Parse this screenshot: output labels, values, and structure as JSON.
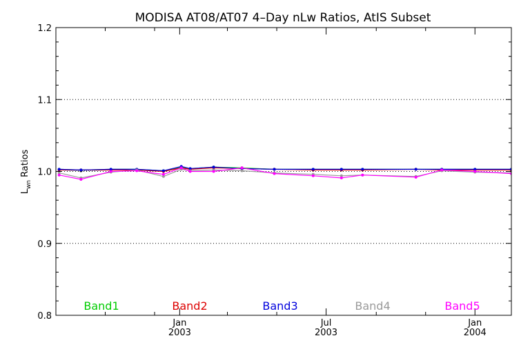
{
  "chart_data": {
    "type": "line",
    "title": "MODISA AT08/AT07 4–Day nLw Ratios, AtIS Subset",
    "ylabel_main": "L",
    "ylabel_sub": "wn",
    "ylabel_rest": " Ratios",
    "xlabel": "",
    "ylim": [
      0.8,
      1.2
    ],
    "yticks": [
      "0.8",
      "0.9",
      "1.0",
      "1.1",
      "1.2"
    ],
    "grid": "horizontal dotted at 0.9, 1.0, 1.1",
    "legend_placement": "bottom, inside plot",
    "x_range": [
      "2002-08-01",
      "2004-02-15"
    ],
    "x_ticks": [
      {
        "date": "2003-01-01",
        "line1": "Jan",
        "line2": "2003"
      },
      {
        "date": "2003-07-01",
        "line1": "Jul",
        "line2": "2003"
      },
      {
        "date": "2004-01-01",
        "line1": "Jan",
        "line2": "2004"
      }
    ],
    "x_minor_ticks": [
      "2002-10-01",
      "2002-12-01",
      "2003-03-01",
      "2003-05-01",
      "2003-09-01",
      "2003-11-01"
    ],
    "x": [
      "2002-08-05",
      "2002-09-01",
      "2002-10-08",
      "2002-11-09",
      "2002-12-12",
      "2003-01-03",
      "2003-01-14",
      "2003-02-12",
      "2003-03-19",
      "2003-04-28",
      "2003-06-15",
      "2003-07-20",
      "2003-08-15",
      "2003-10-20",
      "2003-11-21",
      "2004-01-01",
      "2004-02-15"
    ],
    "series": [
      {
        "name": "Band1",
        "color": "#00cc00",
        "values": [
          1.003,
          1.002,
          1.003,
          1.003,
          1.001,
          1.006,
          1.004,
          1.006,
          1.005,
          1.003,
          1.003,
          1.003,
          1.003,
          1.003,
          1.003,
          1.003,
          1.003
        ]
      },
      {
        "name": "Band2",
        "color": "#dd0000",
        "values": [
          1.002,
          1.002,
          1.002,
          1.002,
          1.0,
          1.005,
          1.003,
          1.005,
          1.004,
          1.003,
          1.002,
          1.002,
          1.002,
          1.003,
          1.002,
          1.002,
          1.002
        ]
      },
      {
        "name": "Band3",
        "color": "#0000dd",
        "values": [
          1.003,
          1.002,
          1.003,
          1.003,
          1.001,
          1.007,
          1.004,
          1.006,
          1.004,
          1.003,
          1.003,
          1.003,
          1.003,
          1.003,
          1.003,
          1.003,
          1.003
        ]
      },
      {
        "name": "Band4",
        "color": "#999999",
        "values": [
          0.998,
          0.991,
          0.999,
          1.002,
          0.993,
          1.003,
          1.001,
          1.002,
          1.001,
          0.998,
          0.996,
          0.994,
          0.995,
          0.993,
          1.001,
          0.999,
          0.998
        ]
      },
      {
        "name": "Band5",
        "color": "#ff00ff",
        "values": [
          0.995,
          0.989,
          1.0,
          1.001,
          0.996,
          1.005,
          1.0,
          1.0,
          1.005,
          0.997,
          0.994,
          0.991,
          0.995,
          0.992,
          1.002,
          1.0,
          0.997
        ]
      }
    ],
    "reference_series": {
      "color": "#000000",
      "values": [
        1.002,
        1.001,
        1.002,
        1.002,
        1.001,
        1.005,
        1.003,
        1.006,
        1.004,
        1.003,
        1.002,
        1.002,
        1.002,
        1.003,
        1.002,
        1.002,
        1.002
      ]
    },
    "legend": [
      "Band1",
      "Band2",
      "Band3",
      "Band4",
      "Band5"
    ]
  }
}
